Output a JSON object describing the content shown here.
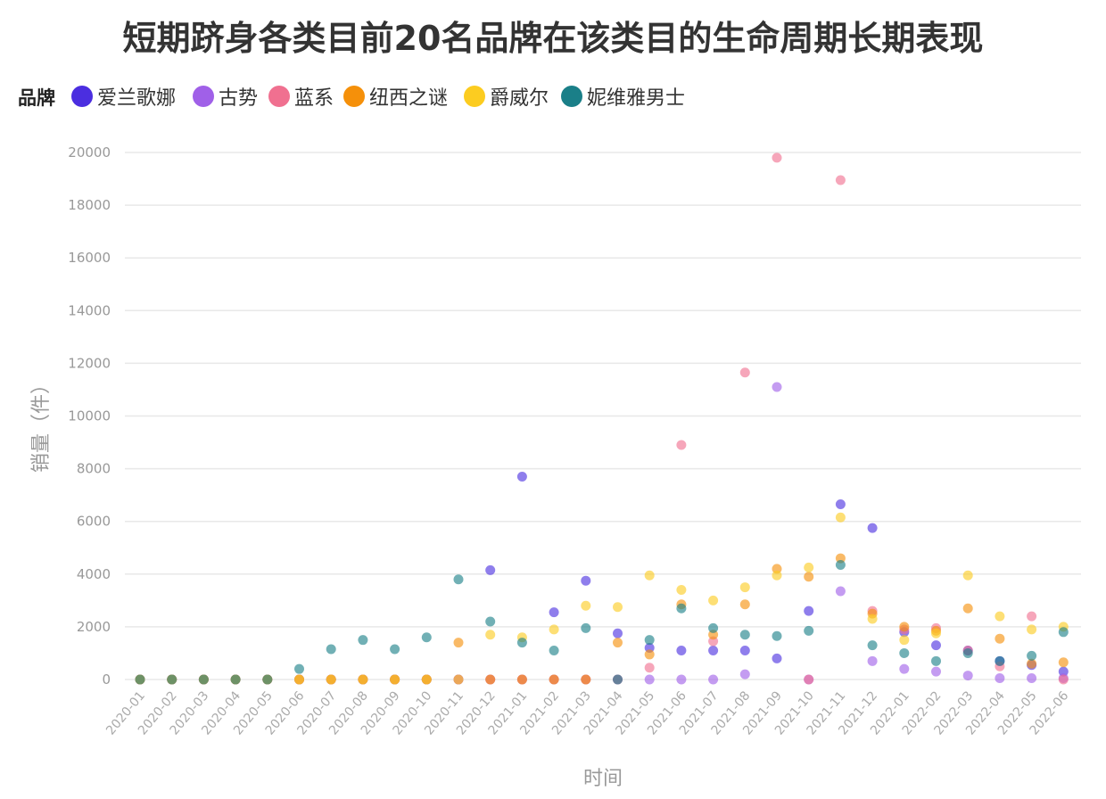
{
  "chart_data": {
    "type": "scatter",
    "title": "短期跻身各类目前20名品牌在该类目的生命周期长期表现",
    "legend_title": "品牌",
    "xlabel": "时间",
    "ylabel": "销量（件）",
    "ylim": [
      0,
      20000
    ],
    "yticks": [
      0,
      2000,
      4000,
      6000,
      8000,
      10000,
      12000,
      14000,
      16000,
      18000,
      20000
    ],
    "grid": true,
    "legend_position": "top-left",
    "categories": [
      "2020-01",
      "2020-02",
      "2020-03",
      "2020-04",
      "2020-05",
      "2020-06",
      "2020-07",
      "2020-08",
      "2020-09",
      "2020-10",
      "2020-11",
      "2020-12",
      "2021-01",
      "2021-02",
      "2021-03",
      "2021-04",
      "2021-05",
      "2021-06",
      "2021-07",
      "2021-08",
      "2021-09",
      "2021-10",
      "2021-11",
      "2021-12",
      "2022-01",
      "2022-02",
      "2022-03",
      "2022-04",
      "2022-05",
      "2022-06"
    ],
    "series": [
      {
        "name": "爱兰歌娜",
        "color": "#4b2ee0",
        "values": [
          0,
          0,
          0,
          0,
          0,
          0,
          0,
          0,
          0,
          0,
          0,
          4150,
          7700,
          2550,
          3750,
          1750,
          1200,
          1100,
          1100,
          1100,
          800,
          2600,
          6650,
          5750,
          1800,
          1300,
          1100,
          700,
          550,
          300
        ]
      },
      {
        "name": "古势",
        "color": "#a060e8",
        "values": [
          0,
          0,
          0,
          0,
          0,
          0,
          0,
          0,
          0,
          0,
          0,
          0,
          0,
          0,
          0,
          0,
          0,
          0,
          0,
          200,
          11100,
          0,
          3350,
          700,
          400,
          300,
          150,
          50,
          50,
          50
        ]
      },
      {
        "name": "蓝系",
        "color": "#f07090",
        "values": [
          0,
          0,
          0,
          0,
          0,
          0,
          0,
          0,
          0,
          0,
          0,
          0,
          0,
          0,
          0,
          0,
          450,
          8900,
          1450,
          11650,
          19800,
          0,
          18950,
          2600,
          1900,
          1950,
          1100,
          500,
          2400,
          0
        ]
      },
      {
        "name": "纽西之谜",
        "color": "#f5900a",
        "values": [
          0,
          0,
          0,
          0,
          0,
          0,
          0,
          0,
          0,
          0,
          1400,
          0,
          0,
          0,
          0,
          1400,
          950,
          2850,
          1700,
          2850,
          4200,
          3900,
          4600,
          2500,
          2000,
          1850,
          2700,
          1550,
          600,
          650
        ]
      },
      {
        "name": "爵威尔",
        "color": "#fccc20",
        "values": [
          0,
          0,
          0,
          0,
          0,
          0,
          0,
          0,
          0,
          0,
          0,
          1700,
          1600,
          1900,
          2800,
          2750,
          3950,
          3400,
          3000,
          3500,
          3950,
          4250,
          6150,
          2300,
          1500,
          1750,
          3950,
          2400,
          1900,
          2000
        ]
      },
      {
        "name": "妮维雅男士",
        "color": "#1a7f88",
        "values": [
          0,
          0,
          0,
          0,
          0,
          400,
          1150,
          1500,
          1150,
          1600,
          3800,
          2200,
          1400,
          1100,
          1950,
          0,
          1500,
          2700,
          1950,
          1700,
          1650,
          1850,
          4350,
          1300,
          1000,
          700,
          1000,
          700,
          900,
          1800
        ]
      }
    ]
  }
}
